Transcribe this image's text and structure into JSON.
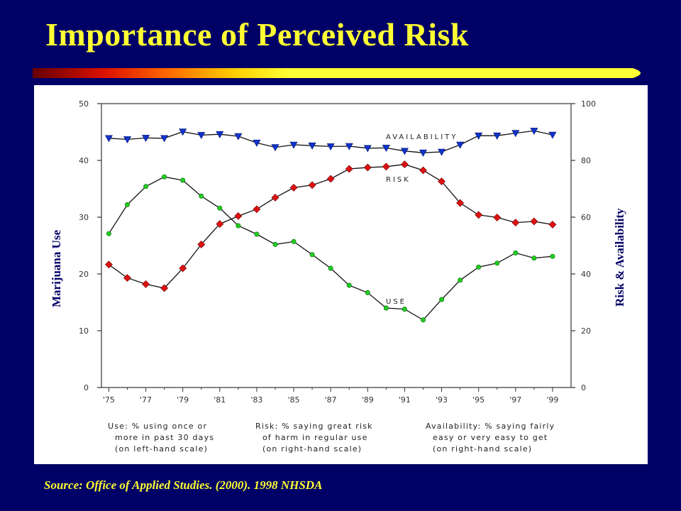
{
  "slide": {
    "title": "Importance of Perceived Risk",
    "source": "Source:  Office of Applied Studies. (2000). 1998 NHSDA"
  },
  "colors": {
    "background": "#000066",
    "title": "#ffff33",
    "use_series": "#22cc22",
    "risk_series": "#dd1111",
    "availability_series": "#1133cc"
  },
  "chart_data": {
    "type": "line",
    "xlabel_left": "Marijuana Use",
    "ylabel_right": "Risk & Availability",
    "x": [
      1975,
      1976,
      1977,
      1978,
      1979,
      1980,
      1981,
      1982,
      1983,
      1984,
      1985,
      1986,
      1987,
      1988,
      1989,
      1990,
      1991,
      1992,
      1993,
      1994,
      1995,
      1996,
      1997,
      1998,
      1999
    ],
    "x_tick_labels": [
      "'75",
      "'77",
      "'79",
      "'81",
      "'83",
      "'85",
      "'87",
      "'89",
      "'91",
      "'93",
      "'95",
      "'97",
      "'99"
    ],
    "left_axis": {
      "range": [
        0,
        50
      ],
      "ticks": [
        "0",
        "10",
        "20",
        "30",
        "40",
        "50"
      ]
    },
    "right_axis": {
      "range": [
        0,
        100
      ],
      "ticks": [
        "0",
        "20",
        "40",
        "60",
        "80",
        "100"
      ]
    },
    "grid": false,
    "series": [
      {
        "name": "USE",
        "axis": "left",
        "marker": "dot",
        "values": [
          27.1,
          32.2,
          35.4,
          37.1,
          36.5,
          33.7,
          31.6,
          28.5,
          27.0,
          25.2,
          25.7,
          23.4,
          21.0,
          18.0,
          16.7,
          14.0,
          13.8,
          11.9,
          15.5,
          18.9,
          21.2,
          21.9,
          23.7,
          22.8,
          23.1
        ]
      },
      {
        "name": "RISK",
        "axis": "right",
        "marker": "diamond",
        "values": [
          43.3,
          38.6,
          36.4,
          35.0,
          42.0,
          50.4,
          57.6,
          60.4,
          62.8,
          66.9,
          70.4,
          71.3,
          73.5,
          77.0,
          77.5,
          77.8,
          78.6,
          76.5,
          72.6,
          65.0,
          60.8,
          59.9,
          58.1,
          58.5,
          57.4
        ]
      },
      {
        "name": "AVAILABILITY",
        "axis": "right",
        "marker": "triangle-down",
        "values": [
          87.8,
          87.4,
          87.9,
          87.8,
          90.1,
          88.9,
          89.2,
          88.5,
          86.2,
          84.6,
          85.5,
          85.2,
          84.9,
          85.0,
          84.3,
          84.4,
          83.3,
          82.7,
          83.0,
          85.5,
          88.7,
          88.7,
          89.6,
          90.4,
          89.0
        ]
      }
    ],
    "series_labels": {
      "use": "USE",
      "risk": "RISK",
      "availability": "AVAILABILITY"
    },
    "footnotes": {
      "use": [
        "Use:  % using once or",
        "more in past 30 days",
        "(on left-hand scale)"
      ],
      "risk": [
        "Risk:  % saying great risk",
        "of harm in regular use",
        "(on right-hand scale)"
      ],
      "availability": [
        "Availability:  % saying fairly",
        "easy or very easy to get",
        "(on right-hand scale)"
      ]
    }
  }
}
